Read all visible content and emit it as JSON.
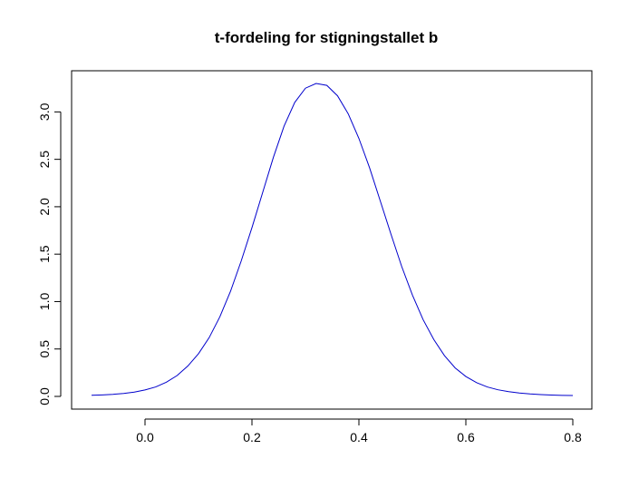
{
  "chart_data": {
    "type": "line",
    "title": "t-fordeling for stigningstallet b",
    "xlabel": "",
    "ylabel": "",
    "xlim": [
      -0.1,
      0.8
    ],
    "ylim": [
      0.0,
      3.3
    ],
    "xticks": [
      0.0,
      0.2,
      0.4,
      0.6,
      0.8
    ],
    "xtick_labels": [
      "0.0",
      "0.2",
      "0.4",
      "0.6",
      "0.8"
    ],
    "yticks": [
      0.0,
      0.5,
      1.0,
      1.5,
      2.0,
      2.5,
      3.0
    ],
    "ytick_labels": [
      "0.0",
      "0.5",
      "1.0",
      "1.5",
      "2.0",
      "2.5",
      "3.0"
    ],
    "grid": false,
    "legend": "none",
    "series": [
      {
        "color": "#0000cc",
        "x": [
          -0.1,
          -0.08,
          -0.06,
          -0.04,
          -0.02,
          0.0,
          0.02,
          0.04,
          0.06,
          0.08,
          0.1,
          0.12,
          0.14,
          0.16,
          0.18,
          0.2,
          0.22,
          0.24,
          0.26,
          0.28,
          0.3,
          0.32,
          0.34,
          0.36,
          0.38,
          0.4,
          0.42,
          0.44,
          0.46,
          0.48,
          0.5,
          0.52,
          0.54,
          0.56,
          0.58,
          0.6,
          0.62,
          0.64,
          0.66,
          0.68,
          0.7,
          0.72,
          0.74,
          0.76,
          0.78,
          0.8
        ],
        "y": [
          0.012,
          0.016,
          0.022,
          0.031,
          0.045,
          0.068,
          0.1,
          0.15,
          0.22,
          0.32,
          0.45,
          0.62,
          0.84,
          1.11,
          1.43,
          1.78,
          2.15,
          2.52,
          2.85,
          3.1,
          3.25,
          3.3,
          3.28,
          3.17,
          2.98,
          2.72,
          2.41,
          2.06,
          1.71,
          1.37,
          1.07,
          0.81,
          0.6,
          0.43,
          0.3,
          0.21,
          0.145,
          0.1,
          0.07,
          0.05,
          0.036,
          0.026,
          0.019,
          0.014,
          0.011,
          0.009
        ]
      }
    ]
  }
}
